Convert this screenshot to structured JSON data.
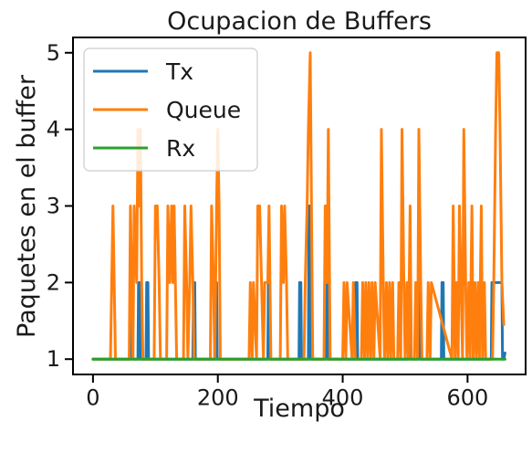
{
  "chart_data": {
    "type": "line",
    "title": "Ocupacion de Buffers",
    "xlabel": "Tiempo",
    "ylabel": "Paquetes en el buffer",
    "xlim": [
      -32,
      693
    ],
    "ylim": [
      0.8,
      5.2
    ],
    "xticks": [
      0,
      200,
      400,
      600
    ],
    "yticks": [
      1,
      2,
      3,
      4,
      5
    ],
    "grid": false,
    "legend_position": "top-left",
    "series": [
      {
        "name": "Tx",
        "color": "#1f77b4",
        "x": [
          0,
          60,
          61,
          63,
          64,
          72,
          73,
          75,
          76,
          85,
          86,
          88,
          89,
          160,
          161,
          163,
          164,
          195,
          196,
          198,
          199,
          280,
          281,
          283,
          284,
          330,
          331,
          333,
          334,
          345,
          346,
          348,
          349,
          372,
          373,
          375,
          376,
          420,
          421,
          423,
          424,
          505,
          506,
          508,
          509,
          520,
          521,
          523,
          524,
          558,
          559,
          561,
          562,
          638,
          639,
          655,
          656,
          658,
          660
        ],
        "y": [
          1,
          1,
          2,
          2,
          1,
          1,
          2,
          2,
          1,
          1,
          2,
          2,
          1,
          1,
          2,
          2,
          1,
          1,
          2,
          2,
          1,
          1,
          2,
          2,
          1,
          1,
          2,
          2,
          1,
          1,
          3,
          3,
          1,
          1,
          3,
          3,
          1,
          1,
          2,
          2,
          1,
          1,
          2,
          2,
          1,
          1,
          2,
          2,
          1,
          1,
          2,
          2,
          1,
          1,
          2,
          2,
          1,
          1,
          1.08
        ]
      },
      {
        "name": "Queue",
        "color": "#ff7f0e",
        "x": [
          0,
          28,
          30,
          32,
          34,
          36,
          58,
          60,
          62,
          64,
          66,
          70,
          72,
          74,
          76,
          78,
          80,
          98,
          100,
          103,
          106,
          108,
          118,
          120,
          123,
          126,
          128,
          130,
          132,
          134,
          145,
          147,
          150,
          152,
          155,
          157,
          160,
          162,
          188,
          190,
          193,
          195,
          198,
          200,
          202,
          204,
          250,
          252,
          255,
          257,
          262,
          264,
          267,
          270,
          273,
          275,
          280,
          282,
          285,
          300,
          302,
          305,
          307,
          310,
          312,
          338,
          340,
          343,
          345,
          348,
          350,
          352,
          370,
          372,
          375,
          377,
          380,
          400,
          402,
          405,
          407,
          415,
          417,
          420,
          422,
          430,
          432,
          435,
          437,
          440,
          442,
          445,
          447,
          450,
          452,
          460,
          462,
          465,
          467,
          470,
          472,
          475,
          477,
          480,
          482,
          488,
          490,
          493,
          495,
          498,
          500,
          503,
          505,
          508,
          510,
          515,
          517,
          520,
          522,
          525,
          527,
          535,
          537,
          540,
          542,
          575,
          577,
          580,
          582,
          585,
          587,
          592,
          594,
          597,
          599,
          602,
          604,
          607,
          609,
          612,
          614,
          617,
          619,
          622,
          624,
          627,
          629,
          640,
          642,
          645,
          647,
          650,
          652,
          655,
          658
        ],
        "y": [
          1,
          1,
          2,
          3,
          2,
          1,
          1,
          3,
          2,
          1,
          3,
          2,
          4,
          3,
          4,
          2,
          1,
          1,
          3,
          3,
          2,
          1,
          1,
          3,
          2,
          3,
          2,
          3,
          2,
          1,
          1,
          3,
          2,
          1,
          2,
          3,
          2,
          1,
          1,
          3,
          2,
          1,
          3,
          4,
          3,
          1,
          1,
          2,
          1,
          2,
          1,
          3,
          3,
          2,
          1,
          2,
          2,
          3,
          1,
          1,
          3,
          2,
          3,
          2,
          1,
          1,
          2,
          3,
          4,
          5,
          3,
          1,
          1,
          3,
          2,
          4,
          1,
          1,
          2,
          1,
          2,
          1,
          2,
          1,
          1,
          1,
          2,
          1,
          2,
          1,
          2,
          1,
          2,
          1,
          2,
          1,
          4,
          2,
          1,
          2,
          1,
          2,
          1,
          2,
          1,
          1,
          2,
          1,
          4,
          2,
          1,
          2,
          1,
          3,
          1,
          1,
          2,
          1,
          4,
          2,
          1,
          1,
          2,
          1,
          2,
          1,
          3,
          1,
          2,
          1,
          3,
          1,
          4,
          2,
          1,
          2,
          1,
          3,
          1,
          2,
          1,
          2,
          1,
          3,
          1,
          2,
          1,
          1,
          2,
          4,
          5,
          5,
          4,
          2,
          1.45
        ]
      },
      {
        "name": "Rx",
        "color": "#2ca02c",
        "x": [
          0,
          660
        ],
        "y": [
          1,
          1
        ]
      }
    ]
  }
}
